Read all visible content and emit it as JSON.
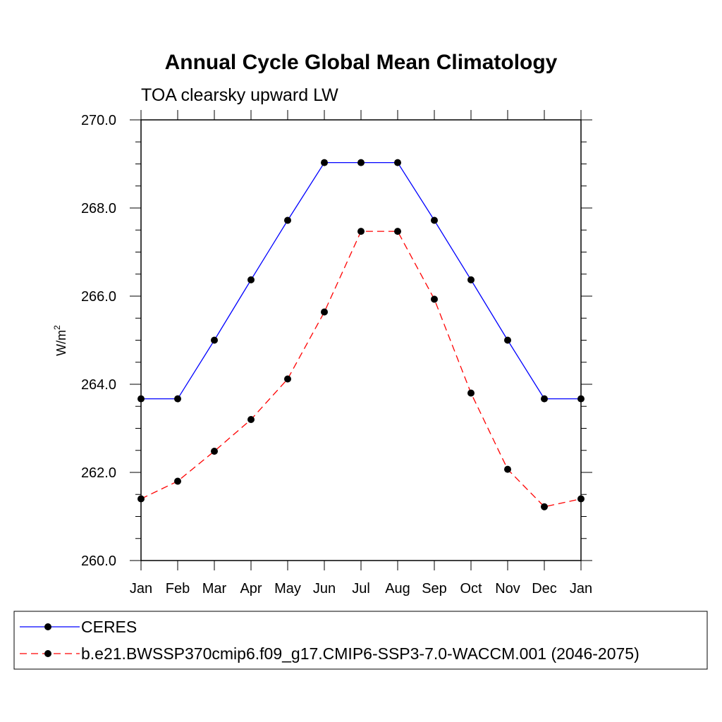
{
  "chart_data": {
    "type": "line",
    "title": "Annual Cycle Global Mean Climatology",
    "subtitle": "TOA clearsky upward LW",
    "ylabel_base": "W/m",
    "ylabel_sup": "2",
    "xlabel": "",
    "categories": [
      "Jan",
      "Feb",
      "Mar",
      "Apr",
      "May",
      "Jun",
      "Jul",
      "Aug",
      "Sep",
      "Oct",
      "Nov",
      "Dec",
      "Jan"
    ],
    "ylim": [
      260.0,
      270.0
    ],
    "y_ticks": [
      "260.0",
      "262.0",
      "264.0",
      "266.0",
      "268.0",
      "270.0"
    ],
    "grid": false,
    "legend_position": "bottom",
    "series": [
      {
        "name": "CERES",
        "color": "#0000ff",
        "dashed": false,
        "values": [
          263.67,
          263.67,
          265.0,
          266.37,
          267.72,
          269.03,
          269.03,
          269.03,
          267.72,
          266.37,
          265.0,
          263.67,
          263.67
        ]
      },
      {
        "name": "b.e21.BWSSP370cmip6.f09_g17.CMIP6-SSP3-7.0-WACCM.001 (2046-2075)",
        "color": "#ff0000",
        "dashed": true,
        "values": [
          261.4,
          261.8,
          262.48,
          263.2,
          264.12,
          265.64,
          267.47,
          267.47,
          265.93,
          263.8,
          262.07,
          261.22,
          261.4
        ]
      }
    ]
  }
}
